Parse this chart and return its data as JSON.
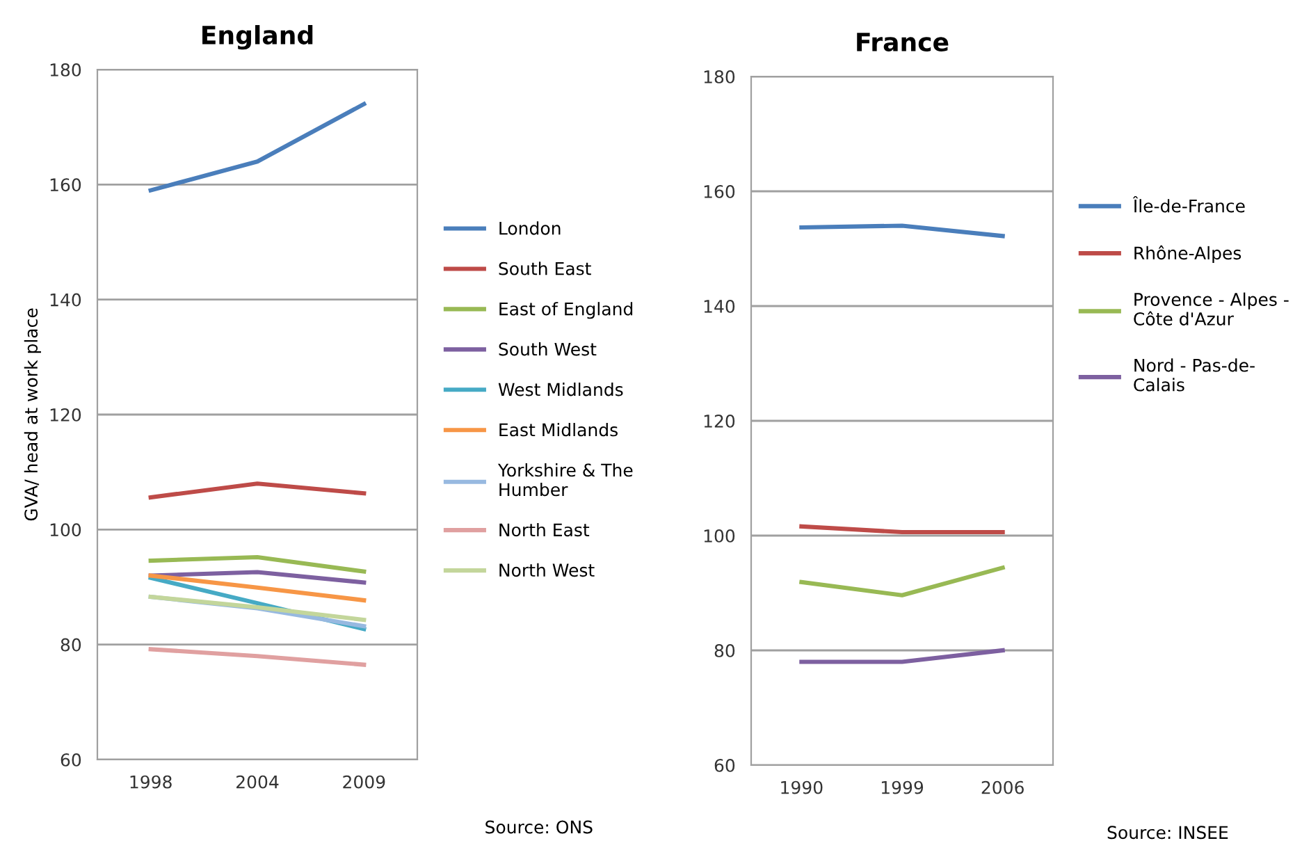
{
  "chart_data": [
    {
      "type": "line",
      "title": "England",
      "ylabel": "GVA/ head at work place",
      "categories": [
        "1998",
        "2004",
        "2009"
      ],
      "ylim": [
        60,
        180
      ],
      "yticks": [
        60,
        80,
        100,
        120,
        140,
        160,
        180
      ],
      "grid": "y",
      "legend": "right",
      "annotations": [
        "Source: ONS"
      ],
      "series": [
        {
          "name": "London",
          "color": "#4a7ebb",
          "values": [
            159,
            164,
            174
          ]
        },
        {
          "name": "South East",
          "color": "#be4b48",
          "values": [
            105.6,
            108,
            106.3
          ]
        },
        {
          "name": "East of England",
          "color": "#98b954",
          "values": [
            94.6,
            95.2,
            92.7
          ]
        },
        {
          "name": "South West",
          "color": "#7d60a0",
          "values": [
            92.0,
            92.6,
            90.8
          ]
        },
        {
          "name": "West Midlands",
          "color": "#46aac5",
          "values": [
            91.6,
            87.2,
            82.7
          ]
        },
        {
          "name": "East Midlands",
          "color": "#f79646",
          "values": [
            92.0,
            89.9,
            87.7
          ]
        },
        {
          "name": "Yorkshire & The\nHumber",
          "color": "#97b9e0",
          "values": [
            88.3,
            86.3,
            83.2
          ]
        },
        {
          "name": "North East",
          "color": "#e0a0a0",
          "values": [
            79.2,
            78,
            76.5
          ]
        },
        {
          "name": "North West",
          "color": "#c3d69b",
          "values": [
            88.3,
            86.5,
            84.3
          ]
        }
      ]
    },
    {
      "type": "line",
      "title": "France",
      "categories": [
        "1990",
        "1999",
        "2006"
      ],
      "ylim": [
        60,
        180
      ],
      "yticks": [
        60,
        80,
        100,
        120,
        140,
        160,
        180
      ],
      "grid": "y",
      "legend": "right",
      "annotations": [
        "Source: INSEE"
      ],
      "series": [
        {
          "name": "Île-de-France",
          "color": "#4a7ebb",
          "values": [
            153.7,
            154,
            152.2
          ]
        },
        {
          "name": "Rhône-Alpes",
          "color": "#be4b48",
          "values": [
            101.6,
            100.6,
            100.6
          ]
        },
        {
          "name": "Provence - Alpes -\nCôte d'Azur",
          "color": "#98b954",
          "values": [
            91.9,
            89.6,
            94.4
          ]
        },
        {
          "name": "Nord - Pas-de-\nCalais",
          "color": "#7d60a0",
          "values": [
            78.0,
            78.0,
            80
          ]
        }
      ]
    }
  ]
}
